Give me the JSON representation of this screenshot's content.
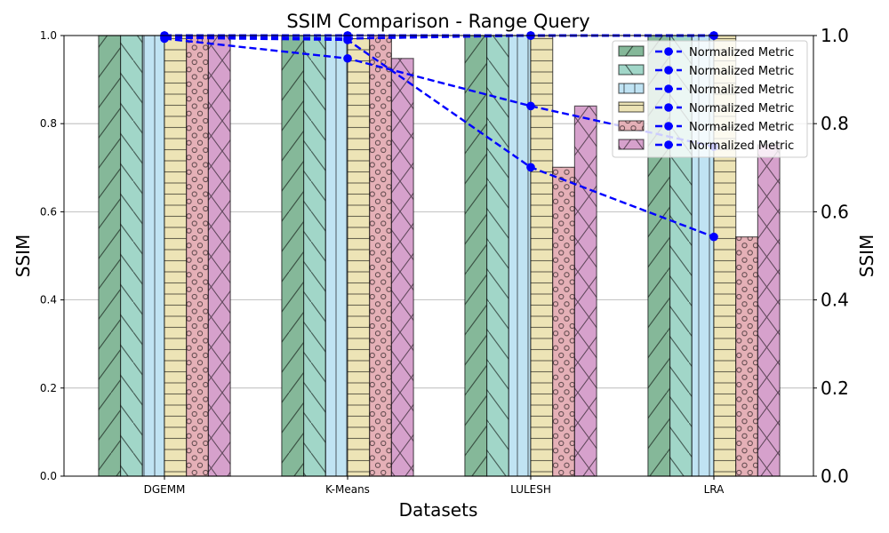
{
  "chart_data": {
    "type": "bar",
    "title": "SSIM Comparison - Range Query",
    "xlabel": "Datasets",
    "ylabel": "SSIM",
    "ylabel_right": "SSIM",
    "categories": [
      "DGEMM",
      "K-Means",
      "LULESH",
      "LRA"
    ],
    "ylim": [
      0,
      1.0
    ],
    "ylim_right": [
      0,
      1.0
    ],
    "yticks": [
      "0.0",
      "0.2",
      "0.4",
      "0.6",
      "0.8",
      "1.0"
    ],
    "grid": "y",
    "legend_position": "top-right",
    "series": [
      {
        "values": [
          1.0,
          1.0,
          1.0,
          1.0
        ],
        "color": "#85b899",
        "hatch": "diagonal-forward"
      },
      {
        "values": [
          1.0,
          1.0,
          1.0,
          1.0
        ],
        "color": "#a1d6c8",
        "hatch": "diagonal-back"
      },
      {
        "values": [
          1.0,
          1.0,
          1.0,
          1.0
        ],
        "color": "#c0e3f3",
        "hatch": "vertical"
      },
      {
        "values": [
          1.0,
          0.993,
          1.0,
          1.0
        ],
        "color": "#ede4b6",
        "hatch": "horizontal"
      },
      {
        "values": [
          1.0,
          1.0,
          0.701,
          0.543
        ],
        "color": "#e5b0b7",
        "hatch": "circles"
      },
      {
        "values": [
          1.0,
          0.948,
          0.84,
          0.752
        ],
        "color": "#d6a1cc",
        "hatch": "crosshatch"
      }
    ],
    "lines": [
      {
        "name": "Normalized Metric",
        "values": [
          1.0,
          1.0,
          1.0,
          1.0
        ]
      },
      {
        "name": "Normalized Metric",
        "values": [
          1.0,
          1.0,
          1.0,
          1.0
        ]
      },
      {
        "name": "Normalized Metric",
        "values": [
          1.0,
          1.0,
          1.0,
          1.0
        ]
      },
      {
        "name": "Normalized Metric",
        "values": [
          0.997,
          0.993,
          1.0,
          1.0
        ]
      },
      {
        "name": "Normalized Metric",
        "values": [
          0.995,
          0.99,
          0.701,
          0.543
        ]
      },
      {
        "name": "Normalized Metric",
        "values": [
          0.993,
          0.948,
          0.84,
          0.748
        ]
      }
    ],
    "line_color": "#0000ff"
  }
}
